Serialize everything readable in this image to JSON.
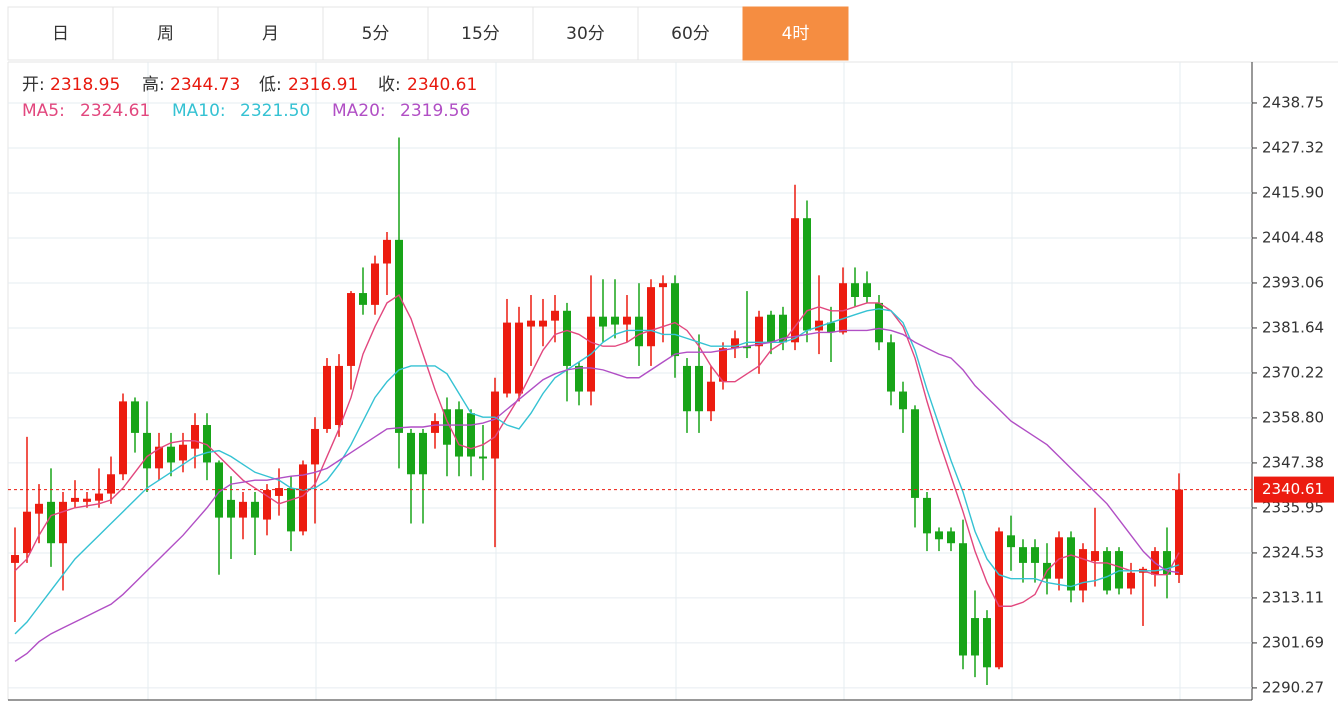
{
  "ui": {
    "tabs": [
      "日",
      "周",
      "月",
      "5分",
      "15分",
      "30分",
      "60分",
      "4时"
    ],
    "active_tab": 7,
    "info": [
      {
        "label": "开:",
        "value": "2318.95"
      },
      {
        "label": "高:",
        "value": "2344.73"
      },
      {
        "label": "低:",
        "value": "2316.91"
      },
      {
        "label": "收:",
        "value": "2340.61"
      }
    ]
  },
  "chart_data": {
    "type": "candlestick",
    "up_color": "#ec1c10",
    "down_color": "#18a418",
    "grid": true,
    "ylim": [
      2287.2,
      2449.15
    ],
    "yticks": [
      2290.27,
      2301.69,
      2313.11,
      2324.53,
      2335.95,
      2347.38,
      {
        "value": 2358.8,
        "label": "2358.80"
      },
      2370.22,
      2381.64,
      2393.06,
      2404.48,
      {
        "value": 2415.9,
        "label": "2415.90"
      },
      2427.32,
      2438.75
    ],
    "last_price": 2340.61,
    "candles": {
      "open": [
        2322,
        2324.5,
        2334.5,
        2337.5,
        2327,
        2337.5,
        2337.5,
        2337.8,
        2339.6,
        2344.5,
        2363,
        2355,
        2346,
        2351.5,
        2348,
        2351,
        2357,
        2347.5,
        2338,
        2333.5,
        2337.5,
        2333,
        2339,
        2341,
        2330,
        2347,
        2356,
        2357,
        2372,
        2390.5,
        2387.5,
        2398,
        2404,
        2355,
        2355,
        2355,
        2361,
        2361,
        2360,
        2349,
        2348.5,
        2365,
        2365,
        2382,
        2382,
        2383.5,
        2386,
        2372,
        2365.5,
        2384.5,
        2384.5,
        2382.5,
        2384.5,
        2377,
        2392,
        2393,
        2372,
        2372,
        2360.5,
        2368,
        2376.5,
        2377,
        2377,
        2385,
        2385,
        2378,
        2409.5,
        2381,
        2383,
        2380.5,
        2393,
        2393,
        2388,
        2378,
        2365.5,
        2361,
        2338.5,
        2330,
        2330,
        2327,
        2308,
        2308,
        2295.5,
        2329,
        2326,
        2326,
        2322,
        2318,
        2328.5,
        2315,
        2322.5,
        2325,
        2325,
        2315.5,
        2319.5,
        2319,
        2325,
        2318.95
      ],
      "high": [
        2331,
        2354,
        2342,
        2346,
        2340,
        2343,
        2340,
        2346,
        2349,
        2365,
        2364,
        2363,
        2355,
        2355,
        2355,
        2360,
        2360,
        2348,
        2344,
        2340,
        2340,
        2342,
        2346,
        2344,
        2348,
        2359,
        2374,
        2375,
        2391,
        2397,
        2400,
        2406,
        2430,
        2356,
        2356,
        2360,
        2364,
        2363,
        2361,
        2357,
        2369,
        2389,
        2387,
        2390,
        2389,
        2390,
        2388,
        2373,
        2395,
        2394,
        2394,
        2390,
        2393,
        2394,
        2395,
        2395,
        2374,
        2380,
        2372,
        2378,
        2381,
        2391,
        2386,
        2386,
        2387,
        2418,
        2414,
        2395,
        2387,
        2397,
        2397,
        2396,
        2390,
        2380,
        2368,
        2362,
        2340,
        2331,
        2331,
        2333,
        2315,
        2310,
        2331,
        2334,
        2328,
        2328,
        2327,
        2330,
        2330,
        2327,
        2336,
        2326,
        2326,
        2322,
        2321,
        2326,
        2331,
        2344.73
      ],
      "low": [
        2307,
        2322,
        2327,
        2321,
        2315,
        2336,
        2336,
        2336,
        2337,
        2343,
        2350,
        2340,
        2343,
        2344,
        2345,
        2346,
        2343,
        2319,
        2323,
        2328,
        2324,
        2329,
        2334,
        2325,
        2329,
        2332,
        2355,
        2354,
        2366,
        2385,
        2385,
        2390,
        2346,
        2332,
        2332,
        2351,
        2344,
        2344,
        2344,
        2343,
        2326,
        2364,
        2363,
        2372,
        2377,
        2378,
        2363,
        2362,
        2362,
        2378,
        2379,
        2378,
        2372,
        2372,
        2378,
        2369,
        2355,
        2355,
        2358,
        2366,
        2374,
        2374,
        2370,
        2375,
        2376,
        2376,
        2378,
        2375,
        2373,
        2380,
        2387,
        2388,
        2376,
        2362,
        2355,
        2331,
        2325,
        2325,
        2325,
        2295,
        2293,
        2291,
        2295,
        2320,
        2317,
        2317,
        2314,
        2315,
        2312,
        2312,
        2316,
        2314,
        2314,
        2314,
        2306,
        2316,
        2313,
        2316.91
      ],
      "close": [
        2324,
        2335,
        2337,
        2327,
        2337.5,
        2338.5,
        2338.3,
        2339.6,
        2344.5,
        2363,
        2355,
        2346,
        2351.5,
        2347.5,
        2352,
        2357,
        2347.5,
        2333.5,
        2333.5,
        2337.5,
        2333.5,
        2340.5,
        2341,
        2330,
        2347,
        2356,
        2372,
        2372,
        2390.5,
        2387.5,
        2398,
        2404,
        2355,
        2344.5,
        2344.5,
        2358,
        2352,
        2349,
        2349,
        2348.5,
        2365.5,
        2383,
        2383,
        2383.5,
        2383.5,
        2386,
        2372,
        2365.5,
        2384.5,
        2382,
        2382.5,
        2384.5,
        2377,
        2392,
        2393,
        2374.5,
        2360.5,
        2360.5,
        2368,
        2376.5,
        2379,
        2376.5,
        2384.5,
        2378,
        2378,
        2409.5,
        2381,
        2383.5,
        2380.5,
        2393,
        2389.5,
        2389.5,
        2378,
        2365.5,
        2361,
        2338.5,
        2329.5,
        2328,
        2327,
        2298.5,
        2298.5,
        2295.5,
        2330,
        2326,
        2322,
        2322,
        2318,
        2328.5,
        2315,
        2325.5,
        2325,
        2315,
        2315.5,
        2319.5,
        2320.5,
        2325,
        2319,
        2340.61
      ]
    },
    "series": [
      {
        "name": "MA5:",
        "value_label": "2324.61",
        "color": "#e2477e",
        "values": [
          2320,
          2323,
          2329,
          2334,
          2335,
          2336,
          2336.5,
          2337,
          2338,
          2341,
          2345,
          2349,
          2351,
          2352.5,
          2353,
          2353,
          2352,
          2349,
          2346,
          2343,
          2341,
          2339,
          2337,
          2338,
          2339,
          2342,
          2349,
          2356,
          2364,
          2375,
          2382,
          2388,
          2390,
          2384,
          2375,
          2366,
          2358,
          2352,
          2351,
          2352,
          2354,
          2359,
          2364,
          2370,
          2376,
          2380,
          2381,
          2380,
          2378,
          2377,
          2377,
          2378,
          2380,
          2381,
          2382,
          2383,
          2381,
          2377,
          2372,
          2368,
          2368,
          2370,
          2372,
          2376,
          2378,
          2382,
          2386,
          2387,
          2386,
          2386,
          2387,
          2388,
          2388,
          2386,
          2382,
          2374,
          2363,
          2353,
          2344,
          2335,
          2325,
          2317,
          2311,
          2311,
          2312,
          2314,
          2320,
          2323,
          2324,
          2323,
          2322,
          2322,
          2321,
          2320,
          2320,
          2319,
          2319,
          2324.61
        ]
      },
      {
        "name": "MA10:",
        "value_label": "2321.50",
        "color": "#35c2d3",
        "values": [
          2304,
          2307,
          2311,
          2315,
          2319,
          2323,
          2326,
          2329,
          2332,
          2335,
          2338,
          2341,
          2343,
          2345,
          2347,
          2349,
          2350,
          2350.5,
          2349,
          2347,
          2345,
          2344,
          2343,
          2341,
          2340.5,
          2341,
          2343,
          2347,
          2352,
          2358,
          2364,
          2368,
          2371,
          2372,
          2372,
          2372,
          2370,
          2365,
          2360,
          2359,
          2359,
          2357,
          2356,
          2360,
          2365,
          2369,
          2371,
          2373,
          2375,
          2378,
          2380,
          2381,
          2381,
          2381,
          2380,
          2380,
          2379,
          2378,
          2377,
          2377,
          2377,
          2378,
          2378,
          2378,
          2378,
          2379,
          2381,
          2382,
          2383,
          2384,
          2385,
          2386,
          2386.5,
          2386,
          2383,
          2376,
          2366,
          2357,
          2348,
          2340,
          2330,
          2323,
          2319,
          2318,
          2318,
          2318,
          2317,
          2316.5,
          2316,
          2317,
          2317.5,
          2318.5,
          2320,
          2320,
          2320,
          2320,
          2320.5,
          2321.5
        ]
      },
      {
        "name": "MA20:",
        "value_label": "2319.56",
        "color": "#b14fc5",
        "values": [
          2297,
          2299,
          2302,
          2304,
          2305.5,
          2307,
          2308.5,
          2310,
          2311.5,
          2314,
          2317,
          2320,
          2323,
          2326,
          2329,
          2332.5,
          2336,
          2340,
          2342,
          2342.5,
          2343,
          2343,
          2343.5,
          2344,
          2344.3,
          2345,
          2346,
          2348,
          2350,
          2352,
          2354,
          2356,
          2356.3,
          2356.5,
          2356.5,
          2357,
          2357,
          2357,
          2357,
          2357.5,
          2358.5,
          2361,
          2363.5,
          2366,
          2368.5,
          2370,
          2371,
          2371.5,
          2371.5,
          2371,
          2370,
          2369,
          2369,
          2371,
          2373,
          2375,
          2375.5,
          2375.5,
          2375.5,
          2376,
          2376.5,
          2377,
          2377.5,
          2378,
          2379,
          2379.5,
          2380,
          2380.5,
          2380.5,
          2381,
          2381,
          2381,
          2381.5,
          2381,
          2380,
          2378,
          2376.5,
          2375,
          2374,
          2371,
          2367,
          2364,
          2361,
          2358,
          2356,
          2354,
          2352,
          2349,
          2346,
          2343,
          2340,
          2337,
          2333,
          2329,
          2325,
          2322,
          2320,
          2319.56
        ]
      }
    ]
  }
}
